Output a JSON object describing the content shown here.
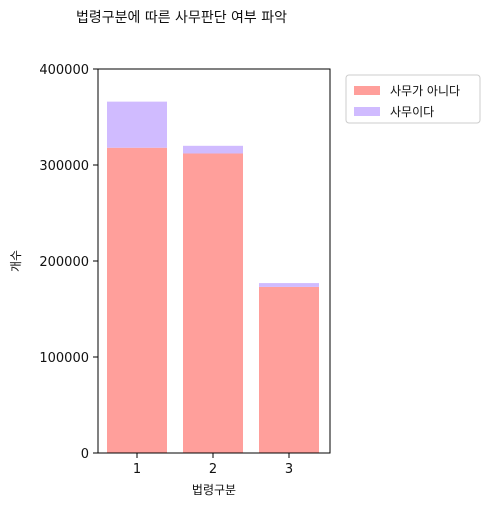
{
  "chart_data": {
    "type": "bar",
    "stacked": true,
    "title": "법령구분에 따른 사무판단 여부 파악",
    "xlabel": "법령구분",
    "ylabel": "개수",
    "categories": [
      "1",
      "2",
      "3"
    ],
    "ylim": [
      0,
      400000
    ],
    "yticks": [
      0,
      100000,
      200000,
      300000,
      400000
    ],
    "ytick_labels": [
      "0",
      "100000",
      "200000",
      "300000",
      "400000"
    ],
    "series": [
      {
        "name": "사무가 아니다",
        "values": [
          318000,
          312000,
          173000
        ],
        "color": "#ff9f9b"
      },
      {
        "name": "사무이다",
        "values": [
          48000,
          8000,
          4000
        ],
        "color": "#d0bbff"
      }
    ],
    "legend_position": "upper right, outside plot",
    "grid": false
  }
}
